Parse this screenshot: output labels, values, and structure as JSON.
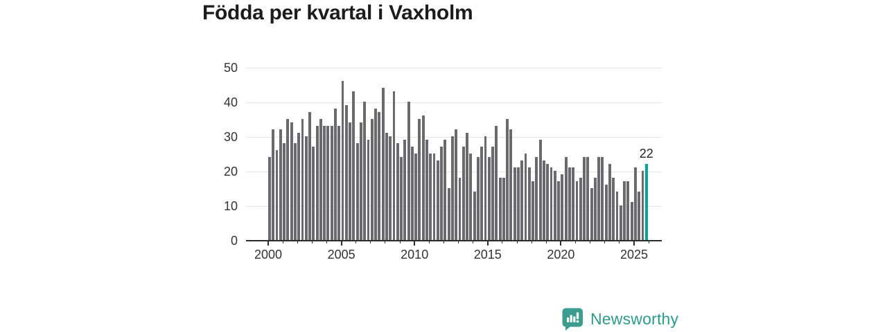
{
  "title": "Födda per kvartal i Vaxholm",
  "chart_data": {
    "type": "bar",
    "title": "Födda per kvartal i Vaxholm",
    "x_unit": "quarter",
    "start_year": 2000,
    "end_year": 2025,
    "values": [
      24,
      32,
      26,
      32,
      28,
      35,
      34,
      28,
      31,
      35,
      30,
      37,
      27,
      33,
      35,
      33,
      33,
      33,
      38,
      33,
      46,
      39,
      34,
      43,
      28,
      34,
      40,
      29,
      35,
      38,
      37,
      44,
      31,
      30,
      43,
      28,
      24,
      29,
      40,
      27,
      25,
      35,
      36,
      29,
      25,
      25,
      23,
      27,
      29,
      15,
      30,
      32,
      18,
      27,
      31,
      25,
      14,
      24,
      27,
      30,
      24,
      27,
      33,
      18,
      18,
      35,
      32,
      21,
      21,
      23,
      25,
      21,
      17,
      24,
      29,
      23,
      22,
      21,
      20,
      17,
      19,
      24,
      21,
      21,
      17,
      18,
      24,
      24,
      15,
      18,
      24,
      24,
      16,
      22,
      18,
      14,
      10,
      17,
      17,
      11,
      21,
      14,
      20,
      22
    ],
    "highlight": {
      "last_bar": true,
      "value": 22,
      "label": "22",
      "color": "#00a69c"
    },
    "bar_color": "#6a6a6e",
    "ylim": [
      0,
      50
    ],
    "yticks": [
      0,
      10,
      20,
      30,
      40,
      50
    ],
    "xticks": [
      2000,
      2005,
      2010,
      2015,
      2020,
      2025
    ],
    "minor_tick_years_start": 2000,
    "minor_tick_years_end": 2026,
    "grid": true,
    "legend": "none"
  },
  "footer": {
    "brand": "Newsworthy"
  },
  "colors": {
    "accent_teal": "#00a69c",
    "bar_gray": "#6a6a6e",
    "brand_teal": "#2e9a8c",
    "grid_gray": "#e4e4e4",
    "axis_dark": "#2b2b2b",
    "text_dark": "#1c1c1c",
    "tick_text": "#333333"
  }
}
